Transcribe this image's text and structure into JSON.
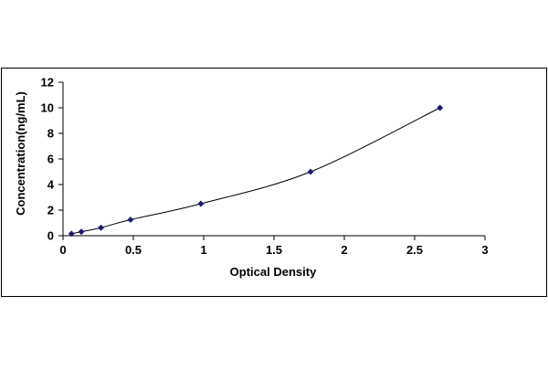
{
  "chart_data": {
    "type": "scatter",
    "title": "",
    "xlabel": "Optical Density",
    "ylabel": "Concentration(ng/mL)",
    "xlim": [
      0,
      3
    ],
    "ylim": [
      0,
      12
    ],
    "x_ticks": [
      "0",
      "0.5",
      "1",
      "1.5",
      "2",
      "2.5",
      "3"
    ],
    "y_ticks": [
      "0",
      "2",
      "4",
      "6",
      "8",
      "10",
      "12"
    ],
    "grid": false,
    "legend": "none",
    "series": [
      {
        "x": [
          0.06,
          0.13,
          0.27,
          0.48,
          0.98,
          1.76,
          2.68
        ],
        "y": [
          0.156,
          0.312,
          0.625,
          1.25,
          2.5,
          5,
          10
        ],
        "marker": "diamond",
        "line": "smooth"
      }
    ],
    "colors": {
      "marker": "#1a1a6e",
      "line": "#000000",
      "frame": "#000000"
    }
  }
}
